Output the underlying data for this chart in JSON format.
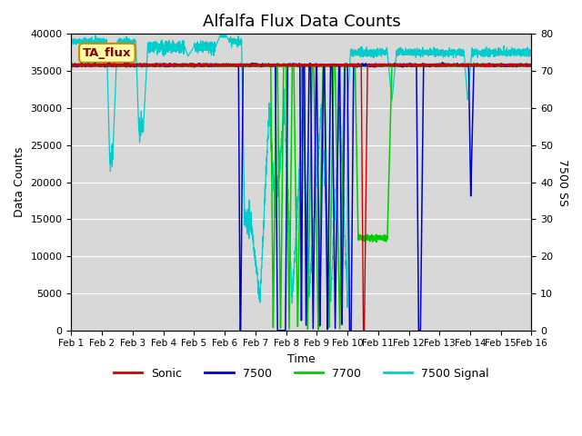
{
  "title": "Alfalfa Flux Data Counts",
  "xlabel": "Time",
  "ylabel_left": "Data Counts",
  "ylabel_right": "7500 SS",
  "ylim_left": [
    0,
    40000
  ],
  "ylim_right": [
    0,
    80
  ],
  "xlim": [
    0,
    15
  ],
  "xtick_labels": [
    "Feb 1",
    "Feb 2",
    "Feb 3",
    "Feb 4",
    "Feb 5",
    "Feb 6",
    "Feb 7",
    "Feb 8",
    "Feb 9",
    "Feb 10",
    "Feb 11",
    "Feb 12",
    "Feb 13",
    "Feb 14",
    "Feb 15",
    "Feb 16"
  ],
  "xtick_positions": [
    0,
    1,
    2,
    3,
    4,
    5,
    6,
    7,
    8,
    9,
    10,
    11,
    12,
    13,
    14,
    15
  ],
  "legend_labels": [
    "Sonic",
    "7500",
    "7700",
    "7500 Signal"
  ],
  "legend_colors": [
    "#cc0000",
    "#0000cc",
    "#00cc00",
    "#00cccc"
  ],
  "label_box_text": "TA_flux",
  "label_box_facecolor": "#ffffaa",
  "label_box_edgecolor": "#cc8800",
  "label_box_textcolor": "#880000",
  "bg_color": "#d8d8d8",
  "horizontal_line_value": 35800,
  "horizontal_line_color": "#00bb00",
  "title_fontsize": 13,
  "base_count": 35800
}
